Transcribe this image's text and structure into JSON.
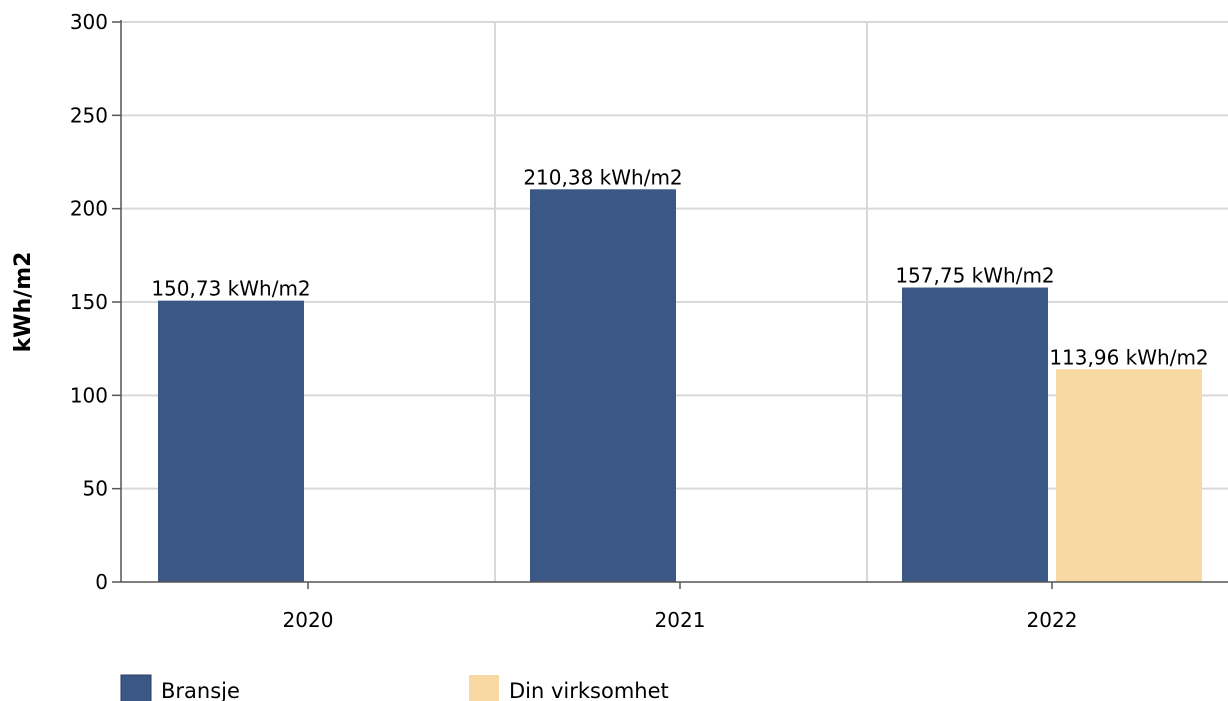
{
  "chart_data": {
    "type": "bar",
    "categories": [
      "2020",
      "2021",
      "2022"
    ],
    "series": [
      {
        "name": "Bransje",
        "values": [
          150.73,
          210.38,
          157.75
        ],
        "labels": [
          "150,73 kWh/m2",
          "210,38 kWh/m2",
          "157,75 kWh/m2"
        ],
        "color": "#3a5785"
      },
      {
        "name": "Din virksomhet",
        "values": [
          null,
          null,
          113.96
        ],
        "labels": [
          null,
          null,
          "113,96 kWh/m2"
        ],
        "color": "#f8d8a3"
      }
    ],
    "ylabel": "kWh/m2",
    "xlabel": "",
    "ylim": [
      0,
      300
    ],
    "yticks": [
      "0",
      "50",
      "100",
      "150",
      "200",
      "250",
      "300"
    ],
    "grid": true,
    "legend_placement": "bottom-left"
  },
  "colors": {
    "grid": "#d9d9d9",
    "axis": "#555555"
  }
}
